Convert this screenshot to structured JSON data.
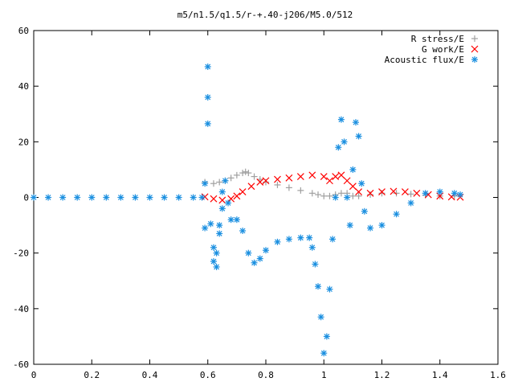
{
  "chart_data": {
    "type": "scatter",
    "title": "m5/n1.5/q1.5/r-+.40-j206/M5.0/512",
    "xlabel": "",
    "ylabel": "",
    "xlim": [
      0,
      1.6
    ],
    "ylim": [
      -60,
      60
    ],
    "x_ticks": [
      "0",
      "0.2",
      "0.4",
      "0.6",
      "0.8",
      "1",
      "1.2",
      "1.4",
      "1.6"
    ],
    "y_ticks": [
      "60",
      "40",
      "20",
      "0",
      "-20",
      "-40",
      "-60"
    ],
    "grid": false,
    "legend_position": "top-right",
    "series": [
      {
        "name": "R stress/E",
        "marker": "plus",
        "color": "#a0a0a0",
        "points": [
          [
            0.59,
            5.5
          ],
          [
            0.62,
            5.0
          ],
          [
            0.64,
            5.5
          ],
          [
            0.66,
            6.0
          ],
          [
            0.68,
            7.0
          ],
          [
            0.7,
            8.0
          ],
          [
            0.72,
            8.8
          ],
          [
            0.73,
            9.2
          ],
          [
            0.74,
            8.8
          ],
          [
            0.76,
            7.5
          ],
          [
            0.78,
            6.5
          ],
          [
            0.8,
            5.5
          ],
          [
            0.84,
            4.5
          ],
          [
            0.88,
            3.5
          ],
          [
            0.92,
            2.5
          ],
          [
            0.96,
            1.5
          ],
          [
            0.98,
            1.0
          ],
          [
            1.0,
            0.5
          ],
          [
            1.02,
            0.5
          ],
          [
            1.04,
            1.0
          ],
          [
            1.06,
            1.5
          ],
          [
            1.08,
            1.5
          ],
          [
            1.1,
            0.5
          ],
          [
            1.12,
            0.5
          ],
          [
            1.16,
            1.0
          ],
          [
            1.2,
            1.5
          ],
          [
            1.25,
            1.5
          ],
          [
            1.3,
            1.2
          ],
          [
            1.35,
            0.8
          ],
          [
            1.4,
            0.5
          ],
          [
            1.45,
            0.5
          ]
        ]
      },
      {
        "name": "G work/E",
        "marker": "cross",
        "color": "#ff0000",
        "points": [
          [
            0.59,
            0.2
          ],
          [
            0.62,
            -0.5
          ],
          [
            0.65,
            -1.0
          ],
          [
            0.68,
            -0.5
          ],
          [
            0.7,
            0.5
          ],
          [
            0.72,
            2.0
          ],
          [
            0.75,
            4.0
          ],
          [
            0.78,
            5.5
          ],
          [
            0.8,
            6.0
          ],
          [
            0.84,
            6.5
          ],
          [
            0.88,
            7.0
          ],
          [
            0.92,
            7.5
          ],
          [
            0.96,
            8.0
          ],
          [
            1.0,
            7.5
          ],
          [
            1.02,
            6.0
          ],
          [
            1.04,
            7.5
          ],
          [
            1.06,
            8.0
          ],
          [
            1.08,
            6.0
          ],
          [
            1.1,
            4.0
          ],
          [
            1.12,
            2.0
          ],
          [
            1.16,
            1.5
          ],
          [
            1.2,
            2.0
          ],
          [
            1.24,
            2.2
          ],
          [
            1.28,
            2.0
          ],
          [
            1.32,
            1.5
          ],
          [
            1.36,
            1.0
          ],
          [
            1.4,
            0.5
          ],
          [
            1.44,
            0.2
          ],
          [
            1.47,
            0.1
          ]
        ]
      },
      {
        "name": "Acoustic flux/E",
        "marker": "star",
        "color": "#1a8fe0",
        "points": [
          [
            0.0,
            0
          ],
          [
            0.05,
            0
          ],
          [
            0.1,
            0
          ],
          [
            0.15,
            0
          ],
          [
            0.2,
            0
          ],
          [
            0.25,
            0
          ],
          [
            0.3,
            0
          ],
          [
            0.35,
            0
          ],
          [
            0.4,
            0
          ],
          [
            0.45,
            0
          ],
          [
            0.5,
            0
          ],
          [
            0.55,
            0
          ],
          [
            0.58,
            0
          ],
          [
            0.59,
            5.0
          ],
          [
            0.6,
            47.0
          ],
          [
            0.6,
            36.0
          ],
          [
            0.6,
            26.5
          ],
          [
            0.59,
            -11.0
          ],
          [
            0.61,
            -9.5
          ],
          [
            0.62,
            -18.0
          ],
          [
            0.62,
            -23.0
          ],
          [
            0.63,
            -25.0
          ],
          [
            0.63,
            -20.0
          ],
          [
            0.64,
            -13.0
          ],
          [
            0.64,
            -10.0
          ],
          [
            0.65,
            -4.0
          ],
          [
            0.65,
            2.0
          ],
          [
            0.66,
            6.0
          ],
          [
            0.67,
            -2.0
          ],
          [
            0.68,
            -8.0
          ],
          [
            0.7,
            -8.0
          ],
          [
            0.72,
            -12.0
          ],
          [
            0.74,
            -20.0
          ],
          [
            0.76,
            -23.5
          ],
          [
            0.78,
            -22.0
          ],
          [
            0.8,
            -19.0
          ],
          [
            0.84,
            -16.0
          ],
          [
            0.88,
            -15.0
          ],
          [
            0.92,
            -14.5
          ],
          [
            0.95,
            -14.5
          ],
          [
            0.96,
            -18.0
          ],
          [
            0.97,
            -24.0
          ],
          [
            0.98,
            -32.0
          ],
          [
            0.99,
            -43.0
          ],
          [
            1.0,
            -56.0
          ],
          [
            1.01,
            -50.0
          ],
          [
            1.02,
            -33.0
          ],
          [
            1.03,
            -15.0
          ],
          [
            1.04,
            0.0
          ],
          [
            1.05,
            18.0
          ],
          [
            1.06,
            28.0
          ],
          [
            1.07,
            20.0
          ],
          [
            1.08,
            0.0
          ],
          [
            1.09,
            -10.0
          ],
          [
            1.1,
            10.0
          ],
          [
            1.11,
            27.0
          ],
          [
            1.12,
            22.0
          ],
          [
            1.13,
            5.0
          ],
          [
            1.14,
            -5.0
          ],
          [
            1.16,
            -11.0
          ],
          [
            1.2,
            -10.0
          ],
          [
            1.25,
            -6.0
          ],
          [
            1.3,
            -2.0
          ],
          [
            1.35,
            1.5
          ],
          [
            1.4,
            2.0
          ],
          [
            1.45,
            1.5
          ],
          [
            1.47,
            1.0
          ]
        ]
      }
    ]
  }
}
